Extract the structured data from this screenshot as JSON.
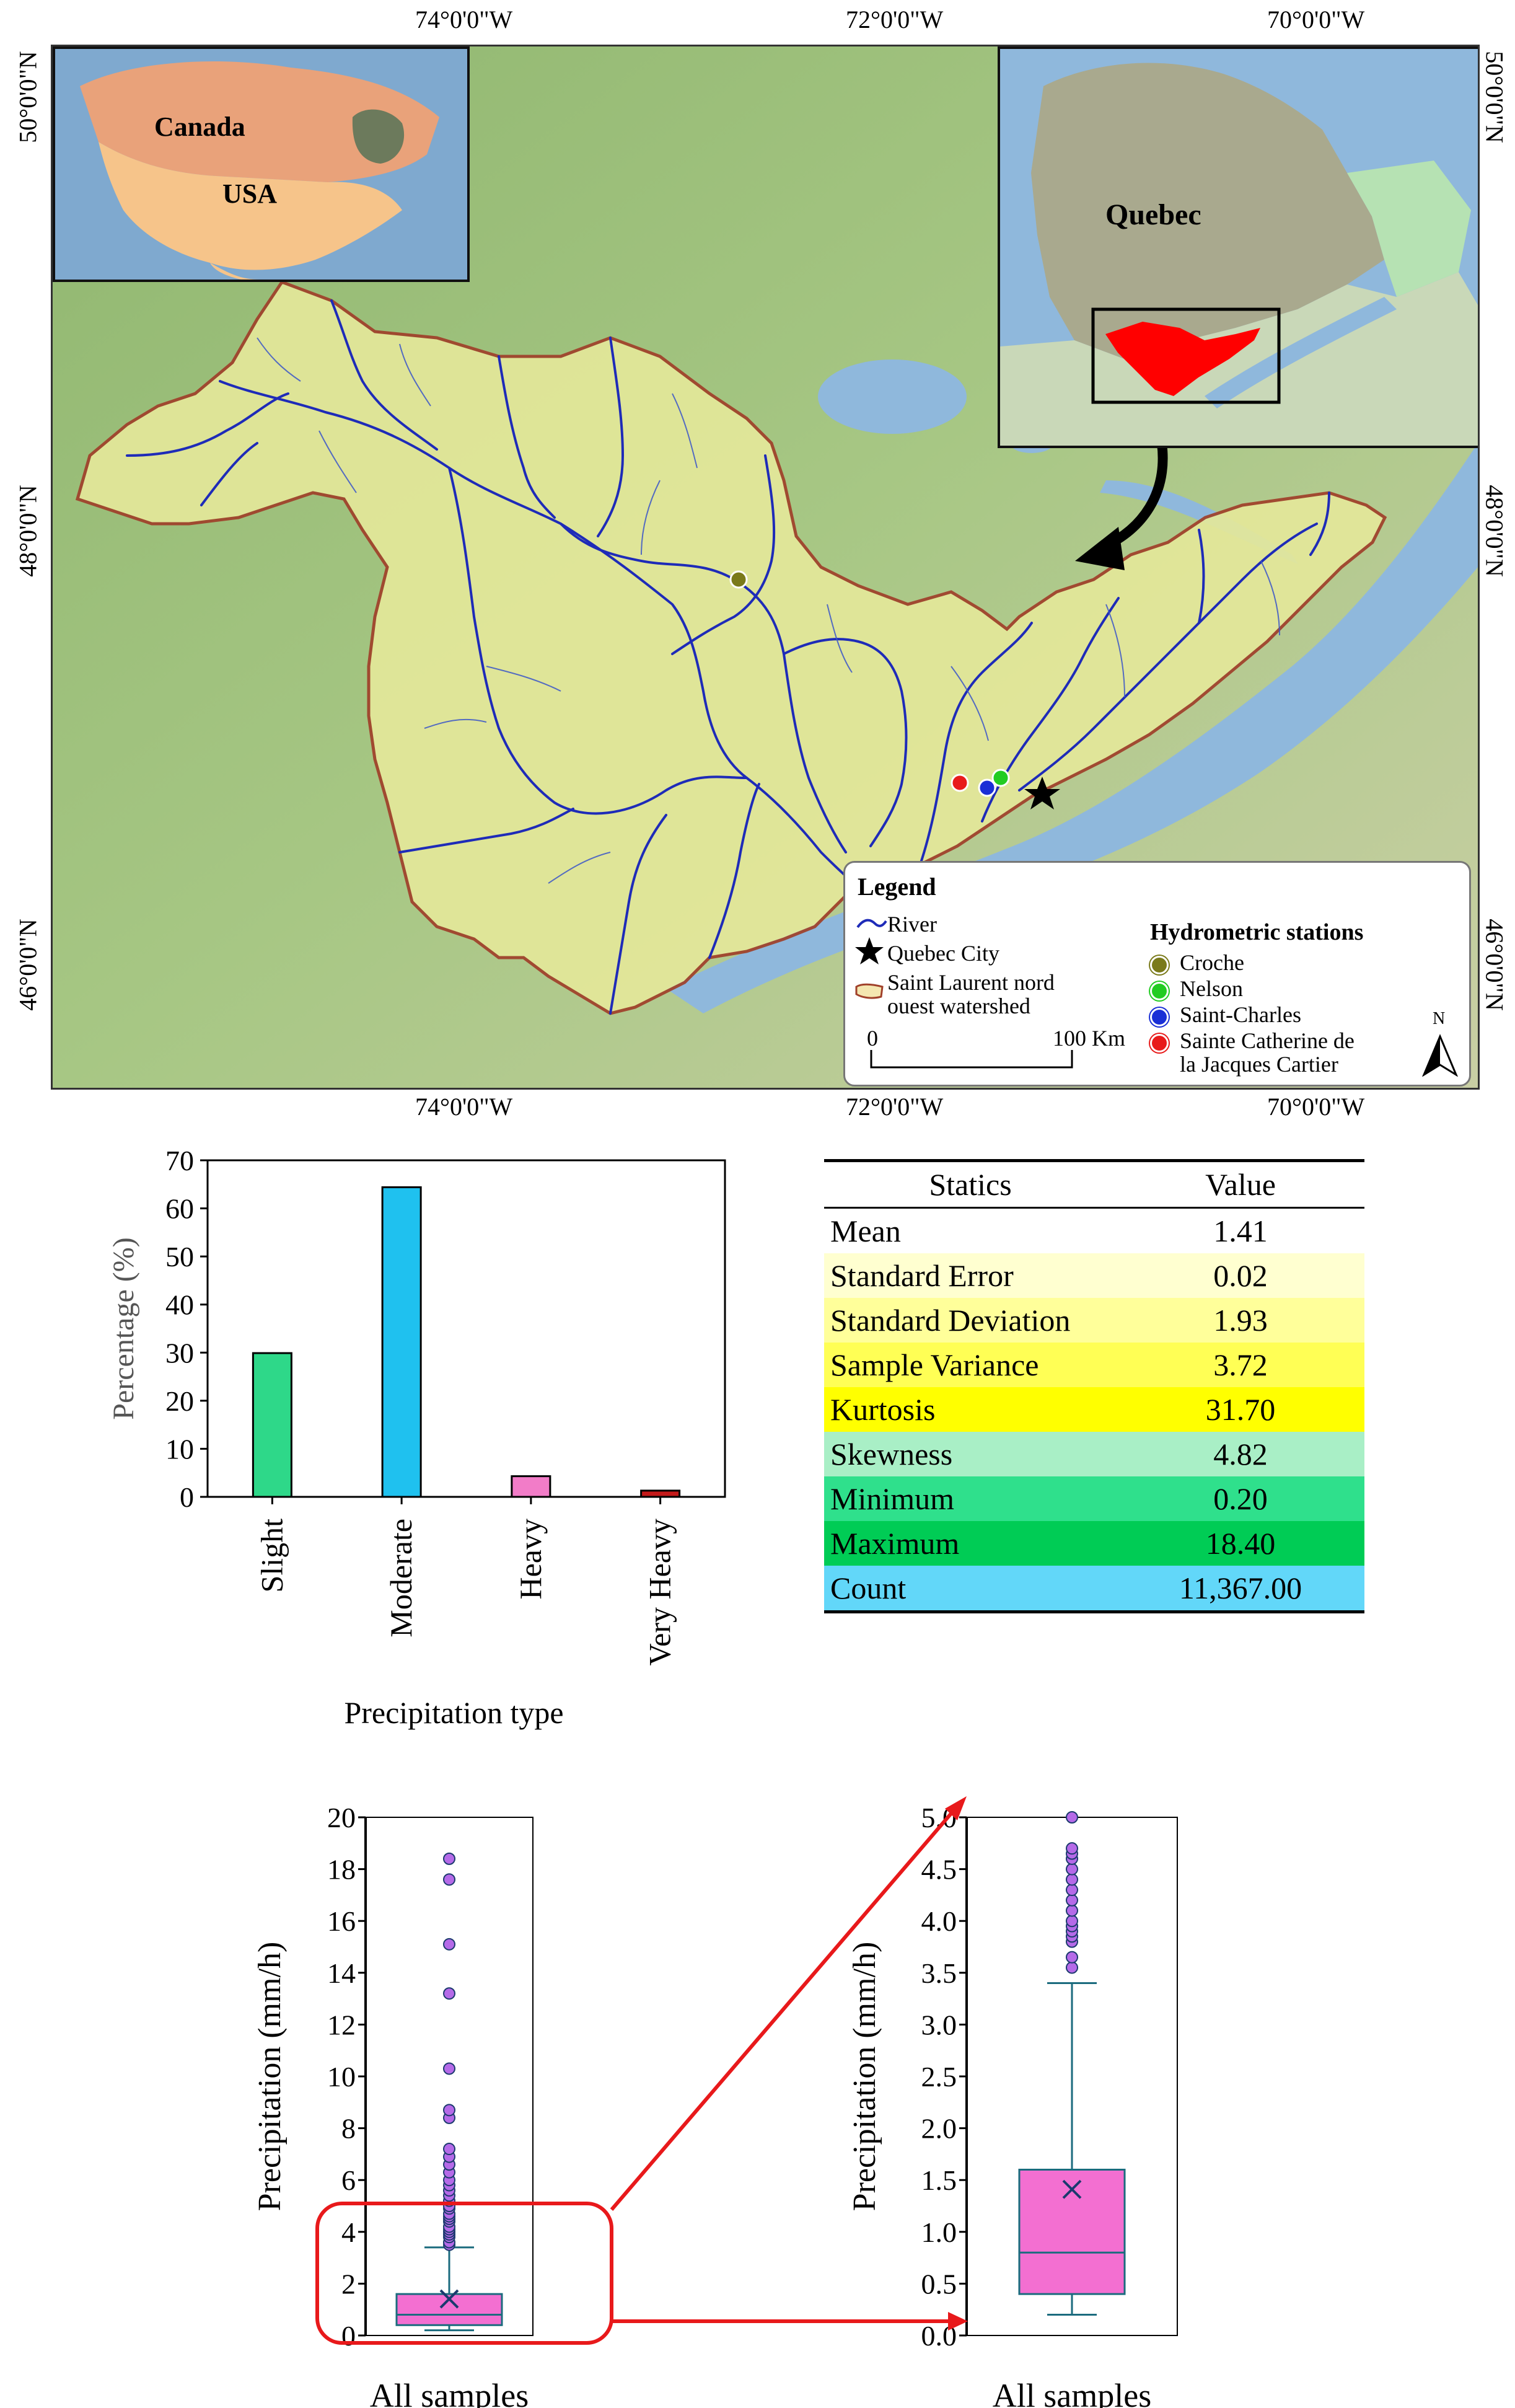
{
  "map": {
    "top_coords": [
      "74°0'0\"W",
      "72°0'0\"W",
      "70°0'0\"W"
    ],
    "bottom_coords": [
      "74°0'0\"W",
      "72°0'0\"W",
      "70°0'0\"W"
    ],
    "left_coords": [
      "50°0'0\"N",
      "48°0'0\"N",
      "46°0'0\"N"
    ],
    "right_coords": [
      "50°0'0\"N",
      "48°0'0\"N",
      "46°0'0\"N"
    ],
    "inset_na": {
      "canada": "Canada",
      "usa": "USA"
    },
    "inset_quebec": {
      "label": "Quebec"
    },
    "legend": {
      "title": "Legend",
      "river": "River",
      "quebec_city": "Quebec City",
      "watershed_line1": "Saint Laurent nord",
      "watershed_line2": "ouest watershed",
      "scale_start": "0",
      "scale_end": "100 Km",
      "stations_title": "Hydrometric stations",
      "stations": [
        {
          "label": "Croche",
          "color": "#7a7a1a"
        },
        {
          "label": "Nelson",
          "color": "#22cc22"
        },
        {
          "label": "Saint-Charles",
          "color": "#1a2fd6"
        },
        {
          "label": "Sainte Catherine de",
          "label2": "la Jacques Cartier",
          "color": "#e81b1b"
        }
      ],
      "north": "N"
    },
    "colors": {
      "watershed_fill": "#e4e89a",
      "watershed_border": "#a0402a",
      "river": "#1e2bb8",
      "water": "#8fb8dc"
    }
  },
  "chart_data": [
    {
      "type": "bar",
      "categories": [
        "Slight",
        "Moderate",
        "Heavy",
        "Very Heavy"
      ],
      "values": [
        29.9,
        64.4,
        4.3,
        1.3
      ],
      "colors": [
        "#2ed889",
        "#1fc1ef",
        "#f27cc8",
        "#c41a1a"
      ],
      "xlabel": "Precipitation type",
      "ylabel": "Percentage (%)",
      "ylim": [
        0,
        70
      ],
      "yticks": [
        0,
        10,
        20,
        30,
        40,
        50,
        60,
        70
      ]
    },
    {
      "type": "table",
      "columns": [
        "Statics",
        "Value"
      ],
      "rows": [
        {
          "label": "Mean",
          "value": "1.41",
          "color": "#ffffff"
        },
        {
          "label": "Standard Error",
          "value": "0.02",
          "color": "#ffffd0"
        },
        {
          "label": "Standard Deviation",
          "value": "1.93",
          "color": "#ffff9a"
        },
        {
          "label": "Sample Variance",
          "value": "3.72",
          "color": "#ffff55"
        },
        {
          "label": "Kurtosis",
          "value": "31.70",
          "color": "#ffff00"
        },
        {
          "label": "Skewness",
          "value": "4.82",
          "color": "#a9efc6"
        },
        {
          "label": "Minimum",
          "value": "0.20",
          "color": "#2fe08c"
        },
        {
          "label": "Maximum",
          "value": "18.40",
          "color": "#00cc55"
        },
        {
          "label": "Count",
          "value": "11,367.00",
          "color": "#62d7f9"
        }
      ]
    },
    {
      "type": "box",
      "category": "All samples",
      "ylabel": "Precipitation (mm/h)",
      "ylim": [
        0,
        20
      ],
      "yticks": [
        0,
        2,
        4,
        6,
        8,
        10,
        12,
        14,
        16,
        18,
        20
      ],
      "ytick_labels": [
        "0",
        "2",
        "4",
        "6",
        "8",
        "10",
        "12",
        "14",
        "16",
        "18",
        "20"
      ],
      "min": 0.2,
      "q1": 0.4,
      "median": 0.8,
      "q3": 1.6,
      "whisker_high": 3.4,
      "mean": 1.41,
      "outliers": [
        3.5,
        3.6,
        3.8,
        3.9,
        4.0,
        4.1,
        4.2,
        4.4,
        4.5,
        4.6,
        4.7,
        4.9,
        5.0,
        5.2,
        5.4,
        5.6,
        5.8,
        6.0,
        6.3,
        6.6,
        6.9,
        7.2,
        8.4,
        8.7,
        10.3,
        13.2,
        15.1,
        17.6,
        18.4
      ]
    },
    {
      "type": "box",
      "category": "All samples",
      "ylabel": "Precipitation (mm/h)",
      "ylim": [
        0,
        5
      ],
      "yticks": [
        0,
        0.5,
        1.0,
        1.5,
        2.0,
        2.5,
        3.0,
        3.5,
        4.0,
        4.5,
        5.0
      ],
      "ytick_labels": [
        "0.0",
        "0.5",
        "1.0",
        "1.5",
        "2.0",
        "2.5",
        "3.0",
        "3.5",
        "4.0",
        "4.5",
        "5.0"
      ],
      "min": 0.2,
      "q1": 0.4,
      "median": 0.8,
      "q3": 1.6,
      "whisker_high": 3.4,
      "mean": 1.41,
      "outliers": [
        3.55,
        3.65,
        3.8,
        3.85,
        3.9,
        3.95,
        4.0,
        4.1,
        4.2,
        4.3,
        4.4,
        4.5,
        4.6,
        4.65,
        4.7,
        5.0
      ]
    }
  ]
}
